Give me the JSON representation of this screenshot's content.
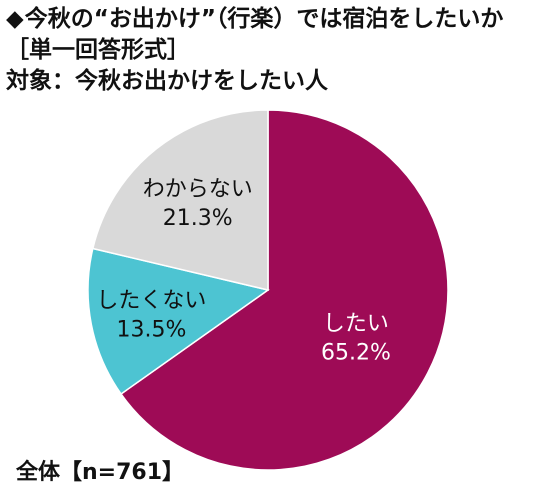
{
  "header": {
    "title_mark": "◆",
    "title": "今秋の“お出かけ”（行楽）では宿泊をしたいか",
    "format": "［単一回答形式］",
    "target": "対象：今秋お出かけをしたい人"
  },
  "footer": {
    "sample": "全体【n=761】"
  },
  "chart_data": {
    "type": "pie",
    "title": "今秋の“お出かけ”（行楽）では宿泊をしたいか",
    "start": "12 o'clock",
    "direction": "clockwise",
    "slices": [
      {
        "label": "したい",
        "value": 65.2,
        "value_label": "65.2%",
        "color": "#9e0b56",
        "label_color": "#ffffff"
      },
      {
        "label": "したくない",
        "value": 13.5,
        "value_label": "13.5%",
        "color": "#4dc4d2",
        "label_color": "#111111"
      },
      {
        "label": "わからない",
        "value": 21.3,
        "value_label": "21.3%",
        "color": "#d9d9d9",
        "label_color": "#111111"
      }
    ]
  }
}
